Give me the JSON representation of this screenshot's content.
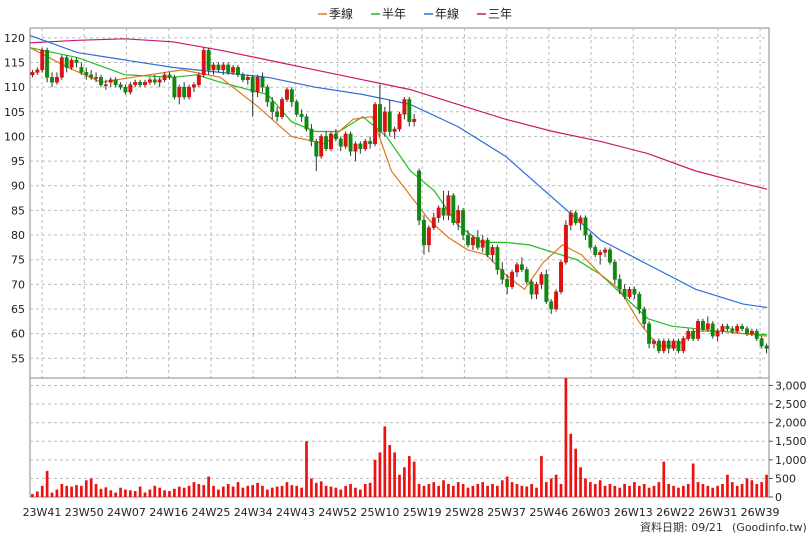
{
  "chart_data": {
    "type": "candlestick",
    "legend": [
      {
        "name": "季線",
        "color": "#e07820"
      },
      {
        "name": "半年",
        "color": "#22bb22"
      },
      {
        "name": "年線",
        "color": "#2a6fd6"
      },
      {
        "name": "三年",
        "color": "#c8186e"
      }
    ],
    "legend_position": "top-center",
    "grid": true,
    "price_axis": {
      "ylim": [
        51,
        122
      ],
      "ticks": [
        55,
        60,
        65,
        70,
        75,
        80,
        85,
        90,
        95,
        100,
        105,
        110,
        115,
        120
      ]
    },
    "volume_axis": {
      "ylim": [
        0,
        3200
      ],
      "ticks": [
        0,
        500,
        1000,
        1500,
        2000,
        2500,
        3000
      ],
      "tick_labels": [
        "0",
        "500",
        "1,000",
        "1,500",
        "2,000",
        "2,500",
        "3,000"
      ]
    },
    "x_tick_labels": [
      "23W41",
      "23W50",
      "24W07",
      "24W16",
      "24W25",
      "24W34",
      "24W43",
      "24W52",
      "25W10",
      "25W19",
      "25W28",
      "25W37",
      "25W46",
      "26W03",
      "26W13",
      "26W22",
      "26W31",
      "26W39"
    ],
    "moving_averages": [
      {
        "name": "三年",
        "color": "#c8186e",
        "points": [
          [
            0,
            119
          ],
          [
            10,
            119.5
          ],
          [
            20,
            119.8
          ],
          [
            30,
            119.2
          ],
          [
            40,
            117.5
          ],
          [
            50,
            115.5
          ],
          [
            60,
            113.5
          ],
          [
            70,
            111.5
          ],
          [
            80,
            109.5
          ],
          [
            90,
            106.5
          ],
          [
            100,
            103.5
          ],
          [
            110,
            101
          ],
          [
            120,
            99
          ],
          [
            130,
            96.5
          ],
          [
            140,
            93
          ],
          [
            150,
            90.5
          ],
          [
            155,
            89.3
          ]
        ]
      },
      {
        "name": "年線",
        "color": "#2a6fd6",
        "points": [
          [
            0,
            120.5
          ],
          [
            10,
            117
          ],
          [
            20,
            115.5
          ],
          [
            30,
            114
          ],
          [
            40,
            113
          ],
          [
            50,
            112
          ],
          [
            60,
            110
          ],
          [
            70,
            108.5
          ],
          [
            80,
            106.5
          ],
          [
            90,
            102
          ],
          [
            100,
            96
          ],
          [
            110,
            87.5
          ],
          [
            120,
            79
          ],
          [
            130,
            74
          ],
          [
            140,
            69
          ],
          [
            150,
            66
          ],
          [
            155,
            65.3
          ]
        ]
      },
      {
        "name": "半年",
        "color": "#22bb22",
        "points": [
          [
            0,
            118
          ],
          [
            10,
            116
          ],
          [
            20,
            112.5
          ],
          [
            30,
            112
          ],
          [
            35,
            112.5
          ],
          [
            40,
            111
          ],
          [
            50,
            108.5
          ],
          [
            55,
            103
          ],
          [
            60,
            101
          ],
          [
            65,
            101
          ],
          [
            70,
            104
          ],
          [
            75,
            100
          ],
          [
            80,
            93
          ],
          [
            85,
            89
          ],
          [
            90,
            82
          ],
          [
            95,
            78.5
          ],
          [
            100,
            78.5
          ],
          [
            105,
            78
          ],
          [
            110,
            76.5
          ],
          [
            115,
            75
          ],
          [
            120,
            72
          ],
          [
            125,
            67.5
          ],
          [
            130,
            63
          ],
          [
            135,
            61.5
          ],
          [
            140,
            61
          ],
          [
            145,
            60.5
          ],
          [
            150,
            60
          ],
          [
            155,
            59.8
          ]
        ]
      },
      {
        "name": "季線",
        "color": "#e07820",
        "points": [
          [
            0,
            118
          ],
          [
            8,
            114
          ],
          [
            15,
            111
          ],
          [
            25,
            112.5
          ],
          [
            32,
            113.5
          ],
          [
            40,
            112
          ],
          [
            48,
            106
          ],
          [
            55,
            100
          ],
          [
            62,
            98.5
          ],
          [
            68,
            103.5
          ],
          [
            72,
            104
          ],
          [
            76,
            93
          ],
          [
            80,
            88
          ],
          [
            84,
            83
          ],
          [
            88,
            79.5
          ],
          [
            92,
            77
          ],
          [
            96,
            76
          ],
          [
            100,
            72
          ],
          [
            104,
            69
          ],
          [
            108,
            74.5
          ],
          [
            112,
            78
          ],
          [
            116,
            76
          ],
          [
            120,
            72
          ],
          [
            124,
            69
          ],
          [
            128,
            62.5
          ],
          [
            132,
            57.5
          ],
          [
            136,
            57.5
          ],
          [
            140,
            60.5
          ],
          [
            146,
            60.5
          ],
          [
            150,
            60
          ],
          [
            155,
            59.5
          ]
        ]
      }
    ],
    "ohlc": [
      [
        112.5,
        113.5,
        112,
        113
      ],
      [
        113,
        114,
        112.5,
        113.5
      ],
      [
        113.5,
        118,
        113,
        117.5
      ],
      [
        117.5,
        118,
        111,
        112
      ],
      [
        112,
        113,
        110,
        111
      ],
      [
        111,
        113,
        110.5,
        112
      ],
      [
        112,
        116.5,
        111.5,
        116
      ],
      [
        116,
        116.5,
        113,
        114
      ],
      [
        114,
        116,
        113.5,
        115.5
      ],
      [
        115.5,
        116,
        114,
        115
      ],
      [
        114,
        115,
        112.5,
        113
      ],
      [
        113,
        114,
        111.5,
        112.5
      ],
      [
        112.5,
        113.5,
        111.5,
        112
      ],
      [
        112,
        113,
        111,
        112
      ],
      [
        112,
        112.5,
        110,
        110.5
      ],
      [
        110.5,
        111.5,
        109.5,
        110.5
      ],
      [
        111,
        112,
        110,
        111.5
      ],
      [
        111.5,
        112,
        110,
        110.5
      ],
      [
        110.5,
        111,
        109.5,
        110
      ],
      [
        110,
        110.5,
        108.5,
        109
      ],
      [
        109,
        111,
        108.5,
        110.5
      ],
      [
        110.5,
        111.5,
        110,
        111
      ],
      [
        111,
        111.5,
        110,
        110.5
      ],
      [
        110.5,
        111.5,
        110,
        111
      ],
      [
        111,
        112,
        110.5,
        111.5
      ],
      [
        111.5,
        112.5,
        110.5,
        111
      ],
      [
        111,
        112,
        110,
        111.5
      ],
      [
        111.5,
        113,
        111,
        112.5
      ],
      [
        112.5,
        113,
        111.5,
        112
      ],
      [
        112,
        112.5,
        107.5,
        108
      ],
      [
        108,
        110.5,
        106.5,
        110
      ],
      [
        110,
        111,
        107.5,
        108
      ],
      [
        108,
        110.5,
        107.5,
        110
      ],
      [
        110,
        111,
        109,
        110.5
      ],
      [
        110.5,
        113,
        110,
        112.5
      ],
      [
        112.5,
        118,
        112,
        117.5
      ],
      [
        117.5,
        118,
        112.5,
        113.5
      ],
      [
        113.5,
        115,
        112.5,
        114.5
      ],
      [
        114.5,
        115,
        113,
        113.5
      ],
      [
        113.5,
        115,
        112.5,
        114.5
      ],
      [
        114.5,
        115,
        112.5,
        113
      ],
      [
        113,
        114.5,
        112.5,
        114
      ],
      [
        114,
        114.5,
        112,
        112.5
      ],
      [
        112.5,
        113,
        111,
        111.5
      ],
      [
        111.5,
        112.5,
        110.5,
        112
      ],
      [
        112,
        112.5,
        104,
        109
      ],
      [
        109,
        112.5,
        108,
        112
      ],
      [
        112,
        113,
        109,
        110
      ],
      [
        110,
        110.5,
        106,
        107
      ],
      [
        107,
        108,
        103.5,
        105
      ],
      [
        105,
        106,
        103,
        104
      ],
      [
        104,
        108,
        103.5,
        107.5
      ],
      [
        107.5,
        110,
        107,
        109.5
      ],
      [
        109.5,
        110,
        106,
        107
      ],
      [
        107,
        107.5,
        104,
        104.5
      ],
      [
        104.5,
        105.5,
        103,
        104
      ],
      [
        104,
        104.5,
        101,
        101.5
      ],
      [
        101.5,
        102.5,
        98,
        99
      ],
      [
        99,
        99.5,
        93,
        96
      ],
      [
        96,
        100.5,
        95.5,
        100
      ],
      [
        100,
        101,
        97,
        97.5
      ],
      [
        97.5,
        101,
        97,
        100.5
      ],
      [
        100.5,
        101.5,
        99,
        99.5
      ],
      [
        99.5,
        100,
        97,
        98
      ],
      [
        98,
        101,
        97.5,
        100.5
      ],
      [
        100.5,
        101,
        96,
        97
      ],
      [
        97,
        99,
        95,
        98.5
      ],
      [
        98.5,
        99,
        96.5,
        97.5
      ],
      [
        97.5,
        99.5,
        97,
        99
      ],
      [
        99,
        100,
        97.5,
        98.5
      ],
      [
        98.5,
        107,
        98,
        106.5
      ],
      [
        106.5,
        110.5,
        100,
        101
      ],
      [
        101,
        106,
        100,
        105
      ],
      [
        105,
        107.5,
        100,
        101
      ],
      [
        101,
        102,
        99.5,
        101.5
      ],
      [
        101.5,
        105,
        101,
        104.5
      ],
      [
        104.5,
        108,
        103.5,
        107.5
      ],
      [
        107.5,
        108,
        102,
        103
      ],
      [
        103,
        104.5,
        102,
        103.5
      ],
      [
        93,
        93.5,
        82,
        83
      ],
      [
        83,
        84,
        76,
        78
      ],
      [
        78,
        82,
        76.5,
        81.5
      ],
      [
        81.5,
        84.5,
        81,
        83.5
      ],
      [
        83.5,
        86,
        82.5,
        85.5
      ],
      [
        85.5,
        89,
        83,
        84
      ],
      [
        84,
        89,
        83,
        88
      ],
      [
        88,
        88.5,
        82,
        82.5
      ],
      [
        82.5,
        86,
        81,
        85
      ],
      [
        85,
        85.5,
        79,
        80
      ],
      [
        80,
        81,
        77.5,
        78
      ],
      [
        78,
        80,
        77,
        79.5
      ],
      [
        79.5,
        81,
        77,
        77.5
      ],
      [
        77.5,
        80,
        76.5,
        79
      ],
      [
        79,
        79.5,
        75.5,
        76
      ],
      [
        76,
        78,
        74.5,
        77.5
      ],
      [
        77.5,
        78,
        72,
        73
      ],
      [
        73,
        74.5,
        70,
        71
      ],
      [
        71,
        72,
        68,
        69.5
      ],
      [
        69.5,
        73,
        69,
        72.5
      ],
      [
        72.5,
        74.5,
        71.5,
        74
      ],
      [
        74,
        75.5,
        72.5,
        73
      ],
      [
        73,
        73.5,
        70,
        70.5
      ],
      [
        70.5,
        71,
        67,
        68
      ],
      [
        68,
        70.5,
        67,
        70
      ],
      [
        70,
        72.5,
        69,
        72
      ],
      [
        72,
        73,
        66,
        66.5
      ],
      [
        66.5,
        67,
        64,
        65
      ],
      [
        65,
        69,
        64.5,
        68.5
      ],
      [
        68.5,
        75,
        68,
        74.5
      ],
      [
        74.5,
        83,
        74,
        82
      ],
      [
        82,
        85,
        81,
        84.5
      ],
      [
        84.5,
        85,
        82,
        82.5
      ],
      [
        82.5,
        84,
        81,
        83.5
      ],
      [
        83.5,
        84,
        79,
        80
      ],
      [
        80,
        80.5,
        77,
        77.5
      ],
      [
        77.5,
        78,
        75.5,
        76
      ],
      [
        76,
        77,
        74,
        76.5
      ],
      [
        76.5,
        77.5,
        75.5,
        77
      ],
      [
        77,
        77.5,
        74,
        74.5
      ],
      [
        74.5,
        75,
        70,
        71
      ],
      [
        71,
        72,
        68,
        69
      ],
      [
        69,
        70,
        67,
        67.5
      ],
      [
        67.5,
        69.5,
        67,
        69
      ],
      [
        69,
        69.5,
        67,
        68
      ],
      [
        68,
        68.5,
        64,
        65
      ],
      [
        65,
        65.5,
        61,
        62
      ],
      [
        62,
        62.5,
        57,
        58
      ],
      [
        58,
        59,
        57,
        58.5
      ],
      [
        58.5,
        59,
        56,
        56.5
      ],
      [
        56.5,
        59,
        56,
        58.5
      ],
      [
        58.5,
        59,
        56,
        57
      ],
      [
        57,
        59,
        56.5,
        58.5
      ],
      [
        58.5,
        59,
        56,
        56.5
      ],
      [
        56.5,
        59.5,
        56,
        59
      ],
      [
        59,
        61,
        58.5,
        60.5
      ],
      [
        60.5,
        61,
        58.5,
        59
      ],
      [
        59,
        63,
        58.5,
        62.5
      ],
      [
        62.5,
        63,
        60.5,
        61
      ],
      [
        61,
        63.5,
        60.5,
        62
      ],
      [
        62,
        62.5,
        59,
        59.5
      ],
      [
        59.5,
        61,
        58.5,
        60.5
      ],
      [
        60.5,
        62,
        60,
        61.5
      ],
      [
        61.5,
        62,
        60.5,
        61
      ],
      [
        61,
        61.5,
        60,
        60.5
      ],
      [
        60.5,
        62,
        60,
        61.5
      ],
      [
        61.5,
        62,
        60.5,
        61
      ],
      [
        61,
        61.5,
        59.5,
        60
      ],
      [
        60,
        61,
        59.5,
        60.5
      ],
      [
        60.5,
        61,
        58.5,
        59
      ],
      [
        59,
        59.5,
        57,
        57.5
      ],
      [
        57.5,
        58,
        56,
        57
      ]
    ],
    "volume": [
      80,
      150,
      300,
      700,
      120,
      200,
      350,
      300,
      280,
      320,
      300,
      450,
      500,
      350,
      220,
      260,
      180,
      120,
      250,
      200,
      180,
      160,
      280,
      120,
      200,
      300,
      250,
      180,
      160,
      220,
      280,
      250,
      300,
      400,
      350,
      320,
      550,
      300,
      200,
      280,
      350,
      280,
      400,
      250,
      300,
      320,
      380,
      300,
      200,
      250,
      280,
      300,
      400,
      320,
      300,
      250,
      1500,
      500,
      380,
      420,
      300,
      280,
      250,
      200,
      300,
      350,
      250,
      200,
      350,
      380,
      1000,
      1200,
      1900,
      1400,
      1200,
      600,
      800,
      1100,
      950,
      350,
      300,
      350,
      400,
      300,
      450,
      350,
      300,
      400,
      350,
      250,
      300,
      350,
      400,
      300,
      350,
      300,
      450,
      550,
      400,
      350,
      300,
      280,
      350,
      250,
      1100,
      400,
      500,
      600,
      350,
      3200,
      1700,
      1300,
      800,
      500,
      400,
      350,
      450,
      300,
      350,
      300,
      250,
      350,
      300,
      400,
      300,
      350,
      250,
      300,
      400,
      950,
      350,
      300,
      250,
      300,
      350,
      900,
      400,
      350,
      300,
      250,
      300,
      350,
      600,
      400,
      300,
      350,
      500,
      450,
      350,
      400,
      600,
      850,
      500,
      400,
      300
    ]
  },
  "footer": {
    "date_label": "資料日期: 09/21",
    "source": "(Goodinfo.tw)"
  }
}
